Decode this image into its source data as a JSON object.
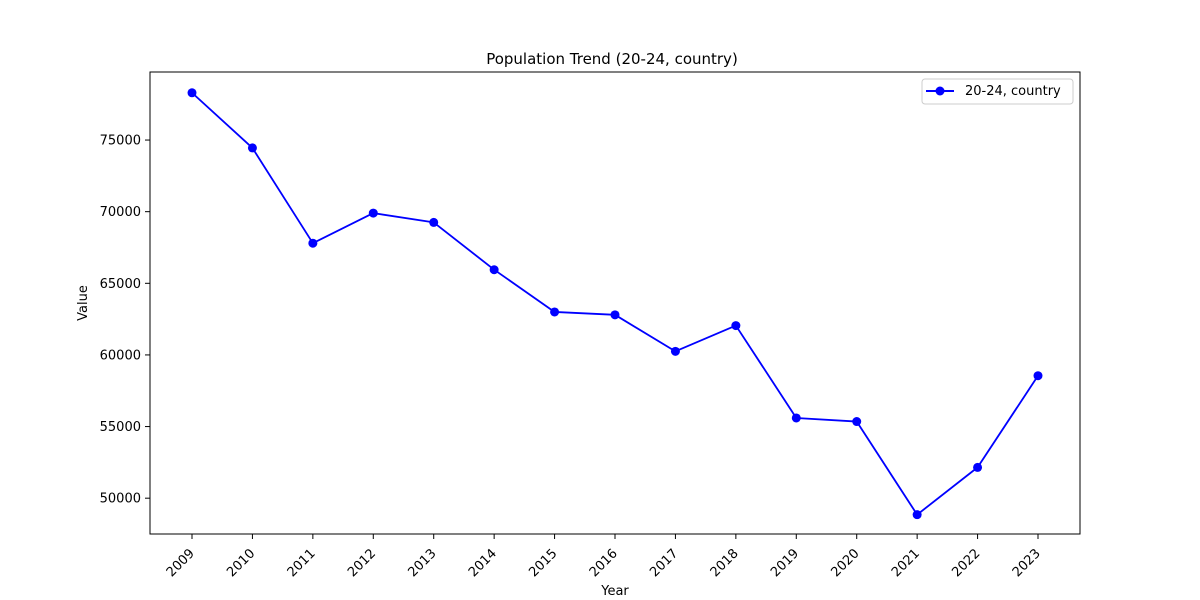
{
  "chart_data": {
    "type": "line",
    "title": "Population Trend (20-24, country)",
    "xlabel": "Year",
    "ylabel": "Value",
    "categories": [
      "2009",
      "2010",
      "2011",
      "2012",
      "2013",
      "2014",
      "2015",
      "2016",
      "2017",
      "2018",
      "2019",
      "2020",
      "2021",
      "2022",
      "2023"
    ],
    "series": [
      {
        "name": "20-24, country",
        "color": "#0000ff",
        "values": [
          78300,
          74450,
          67800,
          69900,
          69250,
          65950,
          63000,
          62800,
          60250,
          62050,
          55600,
          55350,
          48850,
          52150,
          58550
        ]
      }
    ],
    "ylim": [
      47500,
      79750
    ],
    "yticks": [
      50000,
      55000,
      60000,
      65000,
      70000,
      75000
    ],
    "ytick_labels": [
      "50000",
      "55000",
      "60000",
      "65000",
      "70000",
      "75000"
    ],
    "legend_position": "top-right",
    "grid": false
  }
}
